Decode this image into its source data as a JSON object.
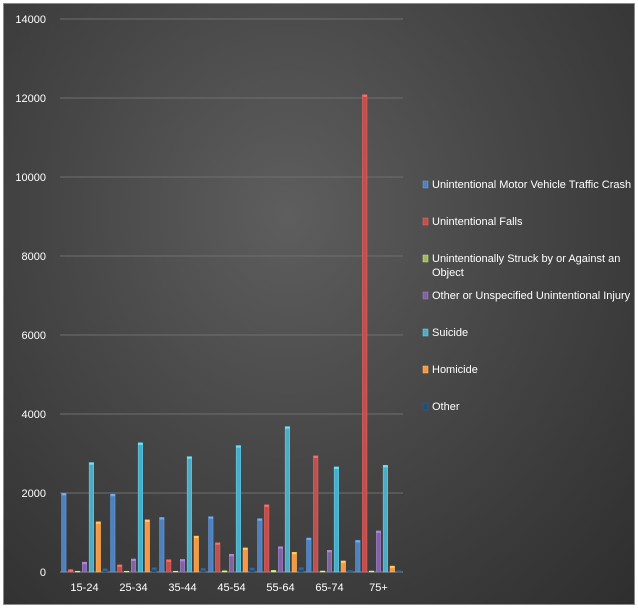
{
  "chart_data": {
    "type": "bar",
    "title": "",
    "xlabel": "",
    "ylabel": "",
    "ylim": [
      0,
      14000
    ],
    "yticks": [
      0,
      2000,
      4000,
      6000,
      8000,
      10000,
      12000,
      14000
    ],
    "grid": true,
    "legend_position": "right",
    "categories": [
      "15-24",
      "25-34",
      "35-44",
      "45-54",
      "55-64",
      "65-74",
      "75+"
    ],
    "series": [
      {
        "name": "Unintentional Motor Vehicle Traffic Crash",
        "color": "#4f81bd",
        "values": [
          1990,
          1970,
          1380,
          1400,
          1350,
          860,
          800
        ]
      },
      {
        "name": "Unintentional Falls",
        "color": "#c0504d",
        "values": [
          60,
          180,
          310,
          740,
          1700,
          2940,
          12080
        ]
      },
      {
        "name": "Unintentionally Struck by or Against an Object",
        "color": "#9bbb59",
        "values": [
          20,
          20,
          20,
          30,
          40,
          25,
          25
        ]
      },
      {
        "name": "Other or Unspecified Unintentional Injury",
        "color": "#8064a2",
        "values": [
          250,
          330,
          320,
          450,
          640,
          550,
          1040
        ]
      },
      {
        "name": "Suicide",
        "color": "#4bacc6",
        "values": [
          2770,
          3270,
          2920,
          3200,
          3680,
          2660,
          2700
        ]
      },
      {
        "name": "Homicide",
        "color": "#f79646",
        "values": [
          1270,
          1320,
          910,
          610,
          500,
          280,
          150
        ]
      },
      {
        "name": "Other",
        "color": "#1f4e79",
        "values": [
          80,
          110,
          90,
          100,
          110,
          40,
          30
        ]
      }
    ]
  }
}
